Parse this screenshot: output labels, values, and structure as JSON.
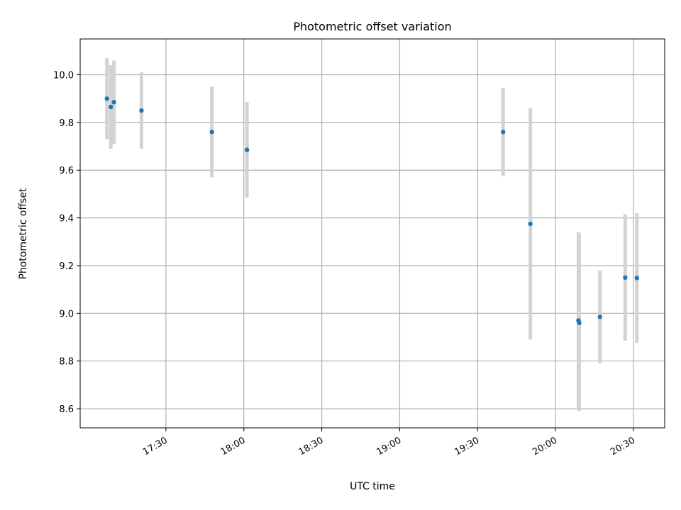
{
  "chart_data": {
    "type": "scatter",
    "title": "Photometric offset variation",
    "xlabel": "UTC time",
    "ylabel": "Photometric offset",
    "grid": true,
    "xlim_minutes": [
      1017,
      1242
    ],
    "ylim": [
      8.52,
      10.15
    ],
    "x_ticks": [
      {
        "minute": 1050,
        "label": "17:30"
      },
      {
        "minute": 1080,
        "label": "18:00"
      },
      {
        "minute": 1110,
        "label": "18:30"
      },
      {
        "minute": 1140,
        "label": "19:00"
      },
      {
        "minute": 1170,
        "label": "19:30"
      },
      {
        "minute": 1200,
        "label": "20:00"
      },
      {
        "minute": 1230,
        "label": "20:30"
      }
    ],
    "y_ticks": [
      {
        "value": 8.6,
        "label": "8.6"
      },
      {
        "value": 8.8,
        "label": "8.8"
      },
      {
        "value": 9.0,
        "label": "9.0"
      },
      {
        "value": 9.2,
        "label": "9.2"
      },
      {
        "value": 9.4,
        "label": "9.4"
      },
      {
        "value": 9.6,
        "label": "9.6"
      },
      {
        "value": 9.8,
        "label": "9.8"
      },
      {
        "value": 10.0,
        "label": "10.0"
      }
    ],
    "series": [
      {
        "name": "offset",
        "marker_color": "#1f77b4",
        "error_color": "#d3d3d3",
        "points": [
          {
            "x": 1027.3,
            "y": 9.9,
            "err": 0.17
          },
          {
            "x": 1028.8,
            "y": 9.865,
            "err": 0.175
          },
          {
            "x": 1030.0,
            "y": 9.885,
            "err": 0.175
          },
          {
            "x": 1040.6,
            "y": 9.85,
            "err": 0.16
          },
          {
            "x": 1067.7,
            "y": 9.76,
            "err": 0.19
          },
          {
            "x": 1081.2,
            "y": 9.685,
            "err": 0.2
          },
          {
            "x": 1179.8,
            "y": 9.76,
            "err": 0.185
          },
          {
            "x": 1190.3,
            "y": 9.375,
            "err": 0.485
          },
          {
            "x": 1208.8,
            "y": 8.97,
            "err": 0.37
          },
          {
            "x": 1209.1,
            "y": 8.96,
            "err": 0.37
          },
          {
            "x": 1217.1,
            "y": 8.985,
            "err": 0.195
          },
          {
            "x": 1226.8,
            "y": 9.15,
            "err": 0.265
          },
          {
            "x": 1231.3,
            "y": 9.148,
            "err": 0.272
          }
        ]
      }
    ]
  }
}
